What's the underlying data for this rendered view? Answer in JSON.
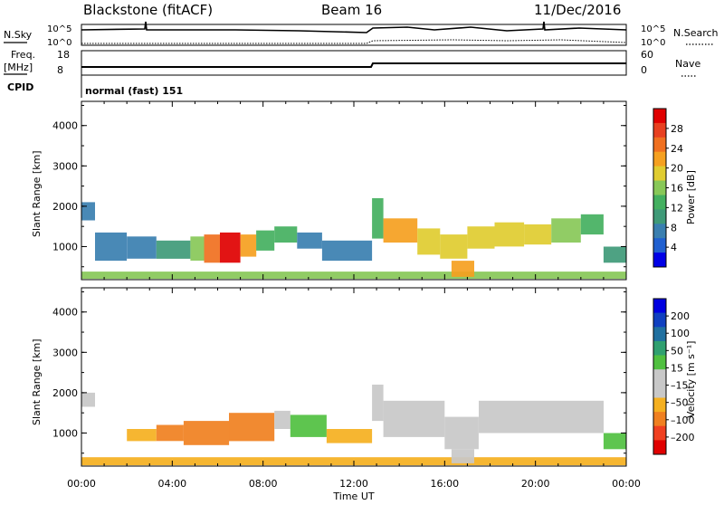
{
  "header": {
    "station": "Blackstone (fitACF)",
    "beam": "Beam 16",
    "date": "11/Dec/2016"
  },
  "top_panel": {
    "left_label": "N.Sky",
    "right_label": "N.Search",
    "tick_high": "10^5",
    "tick_low": "10^0"
  },
  "freq_panel": {
    "left_label_top": "Freq.",
    "left_label_unit": "[MHz]",
    "left_ticks": [
      "18",
      "8"
    ],
    "right_label": "Nave",
    "right_ticks": [
      "60",
      "0"
    ]
  },
  "cpid": {
    "label": "CPID",
    "value": "normal (fast) 151"
  },
  "x_axis": {
    "label": "Time UT",
    "ticks": [
      "00:00",
      "04:00",
      "08:00",
      "12:00",
      "16:00",
      "20:00",
      "00:00"
    ]
  },
  "colors": {
    "power_scale": [
      "#0000e6",
      "#2060d0",
      "#3a7fb0",
      "#3f9a78",
      "#44b060",
      "#88c858",
      "#e0cc30",
      "#f5a020",
      "#f07020",
      "#e84020",
      "#e00000"
    ],
    "velocity_scale": [
      "#e00000",
      "#f04020",
      "#f08020",
      "#f5b020",
      "#c8c8c8",
      "#c8c8c8",
      "#50c040",
      "#30a070",
      "#2070a0",
      "#1040c0",
      "#0000e0"
    ]
  },
  "chart_data": [
    {
      "type": "heatmap",
      "name": "power",
      "ylabel": "Slant Range [km]",
      "ylim": [
        180,
        4600
      ],
      "y_ticks": [
        1000,
        2000,
        3000,
        4000
      ],
      "xlim_hours": [
        0,
        24
      ],
      "colorbar": {
        "label": "Power [dB]",
        "ticks": [
          "28",
          "24",
          "20",
          "16",
          "12",
          "8",
          "4"
        ],
        "range": [
          0,
          32
        ]
      },
      "bands": [
        {
          "t": [
            0.0,
            0.6
          ],
          "lo": 1650,
          "hi": 2100,
          "value": 7
        },
        {
          "t": [
            0.6,
            2.0
          ],
          "lo": 650,
          "hi": 1350,
          "value": 6
        },
        {
          "t": [
            2.0,
            3.3
          ],
          "lo": 700,
          "hi": 1250,
          "value": 7
        },
        {
          "t": [
            3.3,
            4.8
          ],
          "lo": 700,
          "hi": 1150,
          "value": 10
        },
        {
          "t": [
            4.8,
            5.4
          ],
          "lo": 650,
          "hi": 1250,
          "value": 16
        },
        {
          "t": [
            5.4,
            6.1
          ],
          "lo": 600,
          "hi": 1300,
          "value": 26
        },
        {
          "t": [
            6.1,
            7.0
          ],
          "lo": 600,
          "hi": 1350,
          "value": 30
        },
        {
          "t": [
            7.0,
            7.7
          ],
          "lo": 750,
          "hi": 1300,
          "value": 22
        },
        {
          "t": [
            7.7,
            8.5
          ],
          "lo": 900,
          "hi": 1400,
          "value": 14
        },
        {
          "t": [
            8.5,
            9.5
          ],
          "lo": 1100,
          "hi": 1500,
          "value": 12
        },
        {
          "t": [
            9.5,
            10.6
          ],
          "lo": 950,
          "hi": 1350,
          "value": 8
        },
        {
          "t": [
            10.6,
            12.8
          ],
          "lo": 650,
          "hi": 1150,
          "value": 7
        },
        {
          "t": [
            12.8,
            13.3
          ],
          "lo": 1200,
          "hi": 2200,
          "value": 12
        },
        {
          "t": [
            13.3,
            14.8
          ],
          "lo": 1100,
          "hi": 1700,
          "value": 22
        },
        {
          "t": [
            14.8,
            15.8
          ],
          "lo": 800,
          "hi": 1450,
          "value": 20
        },
        {
          "t": [
            15.8,
            17.0
          ],
          "lo": 700,
          "hi": 1300,
          "value": 18
        },
        {
          "t": [
            17.0,
            18.2
          ],
          "lo": 950,
          "hi": 1500,
          "value": 20
        },
        {
          "t": [
            18.2,
            19.5
          ],
          "lo": 1000,
          "hi": 1600,
          "value": 18
        },
        {
          "t": [
            19.5,
            20.7
          ],
          "lo": 1050,
          "hi": 1550,
          "value": 20
        },
        {
          "t": [
            20.7,
            22.0
          ],
          "lo": 1100,
          "hi": 1700,
          "value": 16
        },
        {
          "t": [
            22.0,
            23.0
          ],
          "lo": 1300,
          "hi": 1800,
          "value": 12
        },
        {
          "t": [
            23.0,
            24.0
          ],
          "lo": 600,
          "hi": 1000,
          "value": 11
        },
        {
          "t": [
            0.0,
            24.0
          ],
          "lo": 200,
          "hi": 380,
          "value": 15
        },
        {
          "t": [
            16.3,
            17.3
          ],
          "lo": 250,
          "hi": 650,
          "value": 22
        }
      ]
    },
    {
      "type": "heatmap",
      "name": "velocity",
      "ylabel": "Slant Range [km]",
      "ylim": [
        180,
        4600
      ],
      "y_ticks": [
        1000,
        2000,
        3000,
        4000
      ],
      "xlim_hours": [
        0,
        24
      ],
      "colorbar": {
        "label": "Velocity [m s⁻¹]",
        "ticks": [
          "200",
          "100",
          "50",
          "15",
          "–15",
          "–50",
          "–100",
          "–200"
        ]
      },
      "bands": [
        {
          "t": [
            0.0,
            0.6
          ],
          "lo": 1650,
          "hi": 2000,
          "value": -10
        },
        {
          "t": [
            2.0,
            3.3
          ],
          "lo": 800,
          "hi": 1100,
          "value": -40
        },
        {
          "t": [
            3.3,
            4.5
          ],
          "lo": 800,
          "hi": 1200,
          "value": -70
        },
        {
          "t": [
            4.5,
            6.5
          ],
          "lo": 700,
          "hi": 1300,
          "value": -90
        },
        {
          "t": [
            6.5,
            8.5
          ],
          "lo": 800,
          "hi": 1500,
          "value": -80
        },
        {
          "t": [
            8.5,
            9.2
          ],
          "lo": 1100,
          "hi": 1550,
          "value": -10
        },
        {
          "t": [
            9.2,
            10.8
          ],
          "lo": 900,
          "hi": 1450,
          "value": 40
        },
        {
          "t": [
            10.8,
            12.8
          ],
          "lo": 750,
          "hi": 1100,
          "value": -20
        },
        {
          "t": [
            12.8,
            13.3
          ],
          "lo": 1300,
          "hi": 2200,
          "value": 0
        },
        {
          "t": [
            13.3,
            16.0
          ],
          "lo": 900,
          "hi": 1800,
          "value": 0
        },
        {
          "t": [
            16.0,
            17.5
          ],
          "lo": 600,
          "hi": 1400,
          "value": 0
        },
        {
          "t": [
            17.5,
            23.0
          ],
          "lo": 1000,
          "hi": 1800,
          "value": 0
        },
        {
          "t": [
            23.0,
            24.0
          ],
          "lo": 600,
          "hi": 1000,
          "value": 30
        },
        {
          "t": [
            0.0,
            24.0
          ],
          "lo": 200,
          "hi": 400,
          "value": -30
        },
        {
          "t": [
            16.3,
            17.3
          ],
          "lo": 250,
          "hi": 600,
          "value": 0
        }
      ]
    }
  ]
}
